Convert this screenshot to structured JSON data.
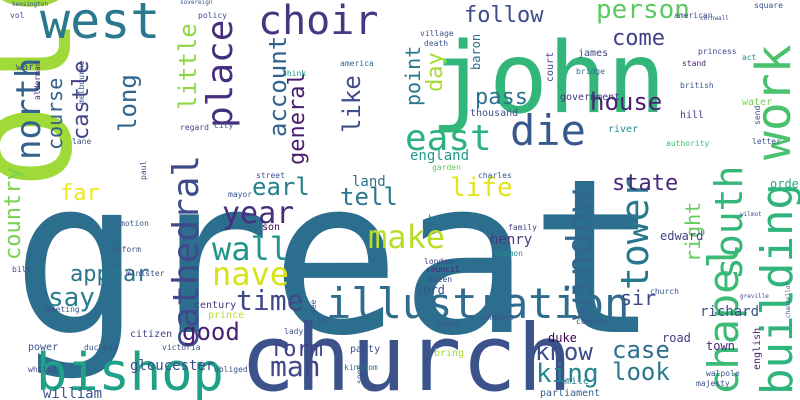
{
  "words": [
    {
      "text": "great",
      "color": "#2c6e8e"
    },
    {
      "text": "old",
      "color": "#a0da39"
    },
    {
      "text": "church",
      "color": "#3b528b"
    },
    {
      "text": "john",
      "color": "#32b67a"
    },
    {
      "text": "west",
      "color": "#2a788e"
    },
    {
      "text": "illustration",
      "color": "#2f6c8e"
    },
    {
      "text": "bishop",
      "color": "#1fa188"
    },
    {
      "text": "work",
      "color": "#4ac16d"
    },
    {
      "text": "building",
      "color": "#2fb47c"
    },
    {
      "text": "chapel",
      "color": "#3bbb75"
    },
    {
      "text": "die",
      "color": "#38598c"
    },
    {
      "text": "north",
      "color": "#33638d"
    },
    {
      "text": "east",
      "color": "#2db27d"
    },
    {
      "text": "choir",
      "color": "#453781"
    },
    {
      "text": "south",
      "color": "#35b779"
    },
    {
      "text": "tower",
      "color": "#2a788e"
    },
    {
      "text": "window",
      "color": "#31668e"
    },
    {
      "text": "cathedral",
      "color": "#3e4a89"
    },
    {
      "text": "wall",
      "color": "#1f948c"
    },
    {
      "text": "nave",
      "color": "#d8e219"
    },
    {
      "text": "make",
      "color": "#b8de29"
    },
    {
      "text": "year",
      "color": "#472d7b"
    },
    {
      "text": "place",
      "color": "#46307e"
    },
    {
      "text": "time",
      "color": "#3f4889"
    },
    {
      "text": "say",
      "color": "#287d8e"
    },
    {
      "text": "man",
      "color": "#3f4788"
    },
    {
      "text": "house",
      "color": "#482173"
    },
    {
      "text": "life",
      "color": "#e5e419"
    },
    {
      "text": "king",
      "color": "#25848e"
    },
    {
      "text": "account",
      "color": "#33628d"
    },
    {
      "text": "course",
      "color": "#34618d"
    },
    {
      "text": "country",
      "color": "#7ad151"
    },
    {
      "text": "appear",
      "color": "#2b758e"
    },
    {
      "text": "little",
      "color": "#8fd744"
    },
    {
      "text": "long",
      "color": "#31678e"
    },
    {
      "text": "castle",
      "color": "#414487"
    },
    {
      "text": "pass",
      "color": "#2c718e"
    },
    {
      "text": "like",
      "color": "#3e4c8a"
    },
    {
      "text": "general",
      "color": "#481c6e"
    },
    {
      "text": "earl",
      "color": "#27808e"
    },
    {
      "text": "person",
      "color": "#5ec962"
    },
    {
      "text": "follow",
      "color": "#3d4d8a"
    },
    {
      "text": "come",
      "color": "#414287"
    },
    {
      "text": "day",
      "color": "#a5db36"
    },
    {
      "text": "point",
      "color": "#29798e"
    },
    {
      "text": "tell",
      "color": "#2a778e"
    },
    {
      "text": "state",
      "color": "#482878"
    },
    {
      "text": "right",
      "color": "#65cb5e"
    },
    {
      "text": "good",
      "color": "#481f70"
    },
    {
      "text": "form",
      "color": "#424086"
    },
    {
      "text": "know",
      "color": "#3e4a89"
    },
    {
      "text": "case",
      "color": "#2e6e8e"
    },
    {
      "text": "look",
      "color": "#2a788e"
    },
    {
      "text": "far",
      "color": "#f1e51d"
    },
    {
      "text": "land",
      "color": "#2c728e"
    },
    {
      "text": "henry",
      "color": "#443a83"
    },
    {
      "text": "sir",
      "color": "#3f4889"
    },
    {
      "text": "edward",
      "color": "#404688"
    },
    {
      "text": "england",
      "color": "#1f9a8a"
    },
    {
      "text": "richard",
      "color": "#3c4f8a"
    },
    {
      "text": "gloucester",
      "color": "#3d4e8a"
    },
    {
      "text": "william",
      "color": "#3b528b"
    },
    {
      "text": "duke",
      "color": "#440154"
    },
    {
      "text": "road",
      "color": "#443983"
    },
    {
      "text": "town",
      "color": "#482677"
    },
    {
      "text": "english",
      "color": "#481a6c"
    },
    {
      "text": "order",
      "color": "#22a884"
    },
    {
      "text": "lord",
      "color": "#3b528b"
    },
    {
      "text": "prince",
      "color": "#b5de2b"
    },
    {
      "text": "century",
      "color": "#453882"
    },
    {
      "text": "baron",
      "color": "#2c728e"
    },
    {
      "text": "thousand",
      "color": "#3b528b"
    },
    {
      "text": "government",
      "color": "#443b84"
    },
    {
      "text": "court",
      "color": "#414487"
    },
    {
      "text": "james",
      "color": "#3f4788"
    },
    {
      "text": "hill",
      "color": "#424086"
    },
    {
      "text": "water",
      "color": "#7ad151"
    },
    {
      "text": "river",
      "color": "#228c8d"
    },
    {
      "text": "authority",
      "color": "#3dbc74"
    },
    {
      "text": "war",
      "color": "#3d4d8a"
    },
    {
      "text": "son",
      "color": "#440154"
    },
    {
      "text": "bring",
      "color": "#a8db34"
    },
    {
      "text": "party",
      "color": "#3b528b"
    },
    {
      "text": "power",
      "color": "#3b528b"
    },
    {
      "text": "kingdom",
      "color": "#2c728e"
    },
    {
      "text": "queen",
      "color": "#3b528b"
    },
    {
      "text": "mile",
      "color": "#25848e"
    },
    {
      "text": "parliament",
      "color": "#35608d"
    },
    {
      "text": "citizen",
      "color": "#3f4889"
    },
    {
      "text": "garden",
      "color": "#5ec962"
    },
    {
      "text": "build",
      "color": "#2a788e"
    },
    {
      "text": "family",
      "color": "#414487"
    },
    {
      "text": "common",
      "color": "#21918c"
    },
    {
      "text": "council",
      "color": "#482475"
    },
    {
      "text": "london",
      "color": "#414487"
    },
    {
      "text": "street",
      "color": "#3b528b"
    },
    {
      "text": "think",
      "color": "#21918c"
    },
    {
      "text": "america",
      "color": "#31688e"
    },
    {
      "text": "village",
      "color": "#3b528b"
    },
    {
      "text": "bridge",
      "color": "#2c728e"
    },
    {
      "text": "princess",
      "color": "#3f4889"
    },
    {
      "text": "stand",
      "color": "#482475"
    },
    {
      "text": "act",
      "color": "#21918c"
    },
    {
      "text": "send",
      "color": "#3b528b"
    },
    {
      "text": "letter",
      "color": "#3b528b"
    },
    {
      "text": "victoria",
      "color": "#3b528b"
    },
    {
      "text": "majesty",
      "color": "#3b528b"
    },
    {
      "text": "whilst",
      "color": "#3f4889"
    },
    {
      "text": "duchess",
      "color": "#3b528b"
    },
    {
      "text": "minister",
      "color": "#3f4889"
    },
    {
      "text": "mayor",
      "color": "#3b528b"
    },
    {
      "text": "regard",
      "color": "#3f4889"
    },
    {
      "text": "city",
      "color": "#3b528b"
    },
    {
      "text": "alderman",
      "color": "#482475"
    },
    {
      "text": "melbourne",
      "color": "#3b528b"
    },
    {
      "text": "lane",
      "color": "#3b528b"
    },
    {
      "text": "bill",
      "color": "#3b528b"
    },
    {
      "text": "motion",
      "color": "#3b528b"
    },
    {
      "text": "reform",
      "color": "#3b528b"
    },
    {
      "text": "meeting",
      "color": "#3b528b"
    },
    {
      "text": "paul",
      "color": "#3b528b"
    },
    {
      "text": "policy",
      "color": "#3b528b"
    },
    {
      "text": "death",
      "color": "#3b528b"
    },
    {
      "text": "charles",
      "color": "#3b528b"
    },
    {
      "text": "british",
      "color": "#3b528b"
    },
    {
      "text": "square",
      "color": "#3b528b"
    },
    {
      "text": "obliged",
      "color": "#3b528b"
    },
    {
      "text": "commons",
      "color": "#3b528b"
    },
    {
      "text": "royal",
      "color": "#3b528b"
    },
    {
      "text": "soon",
      "color": "#3b528b"
    },
    {
      "text": "lady",
      "color": "#3b528b"
    },
    {
      "text": "see",
      "color": "#3b528b"
    },
    {
      "text": "inn",
      "color": "#3b528b"
    },
    {
      "text": "company",
      "color": "#3b528b"
    },
    {
      "text": "walpole",
      "color": "#3b528b"
    },
    {
      "text": "church",
      "color": "#3b528b"
    },
    {
      "text": "american",
      "color": "#3b528b"
    },
    {
      "text": "cornwall",
      "color": "#3b528b"
    },
    {
      "text": "vol",
      "color": "#3b528b"
    },
    {
      "text": "kensington",
      "color": "#3b528b"
    },
    {
      "text": "wilmot",
      "color": "#3b528b"
    },
    {
      "text": "greville",
      "color": "#3b528b"
    },
    {
      "text": "chancellor",
      "color": "#3b528b"
    },
    {
      "text": "sovereign",
      "color": "#3b528b"
    }
  ]
}
